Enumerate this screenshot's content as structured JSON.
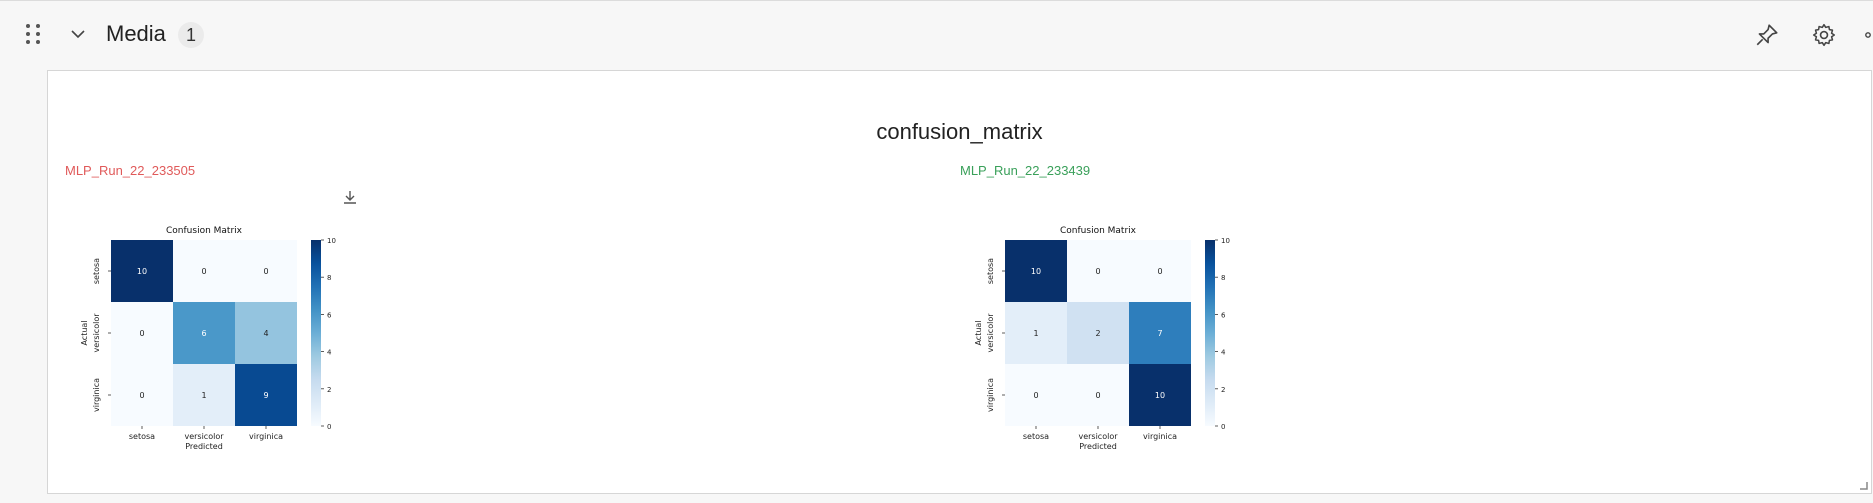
{
  "header": {
    "title": "Media",
    "count": "1"
  },
  "icons": {
    "drag": "drag-handle-icon",
    "collapse": "chevron-down-icon",
    "pin": "pin-icon",
    "settings": "gear-icon",
    "more": "more-icon",
    "download": "download-icon",
    "resize": "resize-handle-icon"
  },
  "panel": {
    "title": "confusion_matrix"
  },
  "colors": {
    "low": "#f7fbff",
    "high": "#08306b",
    "run_left": "#e05a5a",
    "run_right": "#3aa05a"
  },
  "chart_data": [
    {
      "type": "heatmap",
      "run_label": "MLP_Run_22_233505",
      "title": "Confusion Matrix",
      "xlabel": "Predicted",
      "ylabel": "Actual",
      "x_categories": [
        "setosa",
        "versicolor",
        "virginica"
      ],
      "y_categories": [
        "setosa",
        "versicolor",
        "virginica"
      ],
      "values": [
        [
          10,
          0,
          0
        ],
        [
          0,
          6,
          4
        ],
        [
          0,
          1,
          9
        ]
      ],
      "cell_labels": [
        [
          "10",
          "0",
          "0"
        ],
        [
          "0",
          "6",
          "4"
        ],
        [
          "0",
          "1",
          "9"
        ]
      ],
      "colorbar": {
        "min": 0,
        "max": 10,
        "ticks": [
          "0",
          "2",
          "4",
          "6",
          "8",
          "10"
        ]
      }
    },
    {
      "type": "heatmap",
      "run_label": "MLP_Run_22_233439",
      "title": "Confusion Matrix",
      "xlabel": "Predicted",
      "ylabel": "Actual",
      "x_categories": [
        "setosa",
        "versicolor",
        "virginica"
      ],
      "y_categories": [
        "setosa",
        "versicolor",
        "virginica"
      ],
      "values": [
        [
          10,
          0,
          0
        ],
        [
          1,
          2,
          7
        ],
        [
          0,
          0,
          10
        ]
      ],
      "cell_labels": [
        [
          "10",
          "0",
          "0"
        ],
        [
          "1",
          "2",
          "7"
        ],
        [
          "0",
          "0",
          "10"
        ]
      ],
      "colorbar": {
        "min": 0,
        "max": 10,
        "ticks": [
          "0",
          "2",
          "4",
          "6",
          "8",
          "10"
        ]
      }
    }
  ]
}
